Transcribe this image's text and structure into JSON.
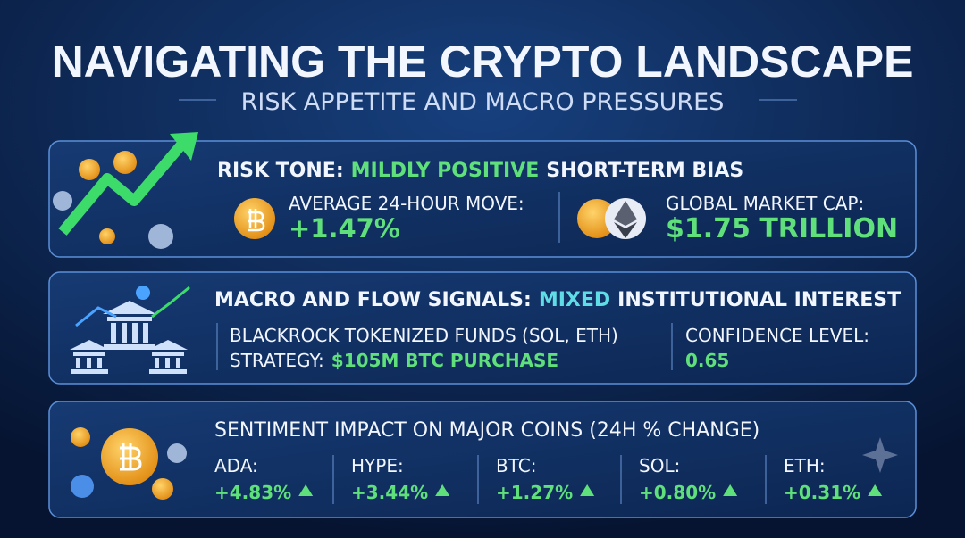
{
  "header": {
    "title": "NAVIGATING THE CRYPTO LANDSCAPE",
    "subtitle": "RISK APPETITE AND MACRO PRESSURES"
  },
  "risk_tone": {
    "label": "RISK TONE:",
    "highlight": "MILDLY POSITIVE",
    "rest": "SHORT-TERM BIAS",
    "metrics": [
      {
        "label": "AVERAGE 24-HOUR MOVE:",
        "value": "+1.47%"
      },
      {
        "label": "GLOBAL MARKET CAP:",
        "value": "$1.75 TRILLION"
      }
    ]
  },
  "macro": {
    "label": "MACRO AND FLOW SIGNALS:",
    "highlight": "MIXED",
    "rest": "INSTITUTIONAL INTEREST",
    "funds": "BLACKROCK TOKENIZED FUNDS (SOL, ETH)",
    "strategy_label": "STRATEGY:",
    "strategy_value": "$105M BTC PURCHASE",
    "confidence_label": "CONFIDENCE LEVEL:",
    "confidence_value": "0.65"
  },
  "sentiment": {
    "title": "SENTIMENT IMPACT ON MAJOR COINS (24H % CHANGE)",
    "coins": [
      {
        "symbol": "ADA:",
        "change": "+4.83%"
      },
      {
        "symbol": "HYPE:",
        "change": "+3.44%"
      },
      {
        "symbol": "BTC:",
        "change": "+1.27%"
      },
      {
        "symbol": "SOL:",
        "change": "+0.80%"
      },
      {
        "symbol": "ETH:",
        "change": "+0.31%"
      }
    ]
  }
}
